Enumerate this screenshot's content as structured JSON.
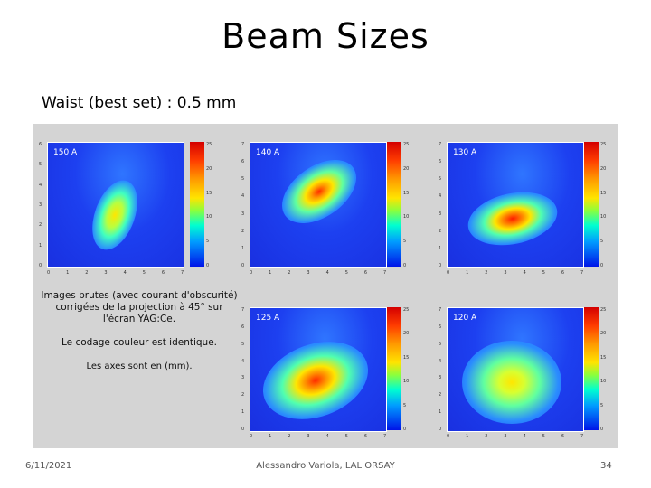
{
  "slide": {
    "title": "Beam Sizes",
    "subtitle": "Waist (best set) : 0.5 mm",
    "description_lines": [
      "Images brutes (avec courant d'obscurité)",
      "corrigées de la projection à 45° sur",
      "l'écran YAG:Ce."
    ],
    "color_note": "Le codage couleur est identique.",
    "axes_note": "Les axes sont en (mm).",
    "footer_date": "6/11/2021",
    "footer_author": "Alessandro Variola, LAL ORSAY",
    "footer_page": "34"
  },
  "plots": [
    {
      "label": "150 A",
      "x_ticks": [
        "0",
        "1",
        "2",
        "3",
        "4",
        "5",
        "6",
        "7"
      ],
      "y_ticks": [
        "6",
        "5",
        "4",
        "3",
        "2",
        "1",
        "0"
      ],
      "colorbar_ticks": [
        "25",
        "20",
        "15",
        "10",
        "5",
        "0"
      ]
    },
    {
      "label": "140 A",
      "x_ticks": [
        "0",
        "1",
        "2",
        "3",
        "4",
        "5",
        "6",
        "7"
      ],
      "y_ticks": [
        "7",
        "6",
        "5",
        "4",
        "3",
        "2",
        "1",
        "0"
      ],
      "colorbar_ticks": [
        "25",
        "20",
        "15",
        "10",
        "5",
        "0"
      ]
    },
    {
      "label": "130 A",
      "x_ticks": [
        "0",
        "1",
        "2",
        "3",
        "4",
        "5",
        "6",
        "7"
      ],
      "y_ticks": [
        "7",
        "6",
        "5",
        "4",
        "3",
        "2",
        "1",
        "0"
      ],
      "colorbar_ticks": [
        "25",
        "20",
        "15",
        "10",
        "5",
        "0"
      ]
    },
    {
      "label": "125 A",
      "x_ticks": [
        "0",
        "1",
        "2",
        "3",
        "4",
        "5",
        "6",
        "7"
      ],
      "y_ticks": [
        "7",
        "6",
        "5",
        "4",
        "3",
        "2",
        "1",
        "0"
      ],
      "colorbar_ticks": [
        "25",
        "20",
        "15",
        "10",
        "5",
        "0"
      ]
    },
    {
      "label": "120 A",
      "x_ticks": [
        "0",
        "1",
        "2",
        "3",
        "4",
        "5",
        "6",
        "7"
      ],
      "y_ticks": [
        "7",
        "6",
        "5",
        "4",
        "3",
        "2",
        "1",
        "0"
      ],
      "colorbar_ticks": [
        "25",
        "20",
        "15",
        "10",
        "5",
        "0"
      ]
    }
  ],
  "colors": {
    "background": "#ffffff",
    "panel": "#d4d4d4",
    "plot_background": "#1d40f0"
  }
}
